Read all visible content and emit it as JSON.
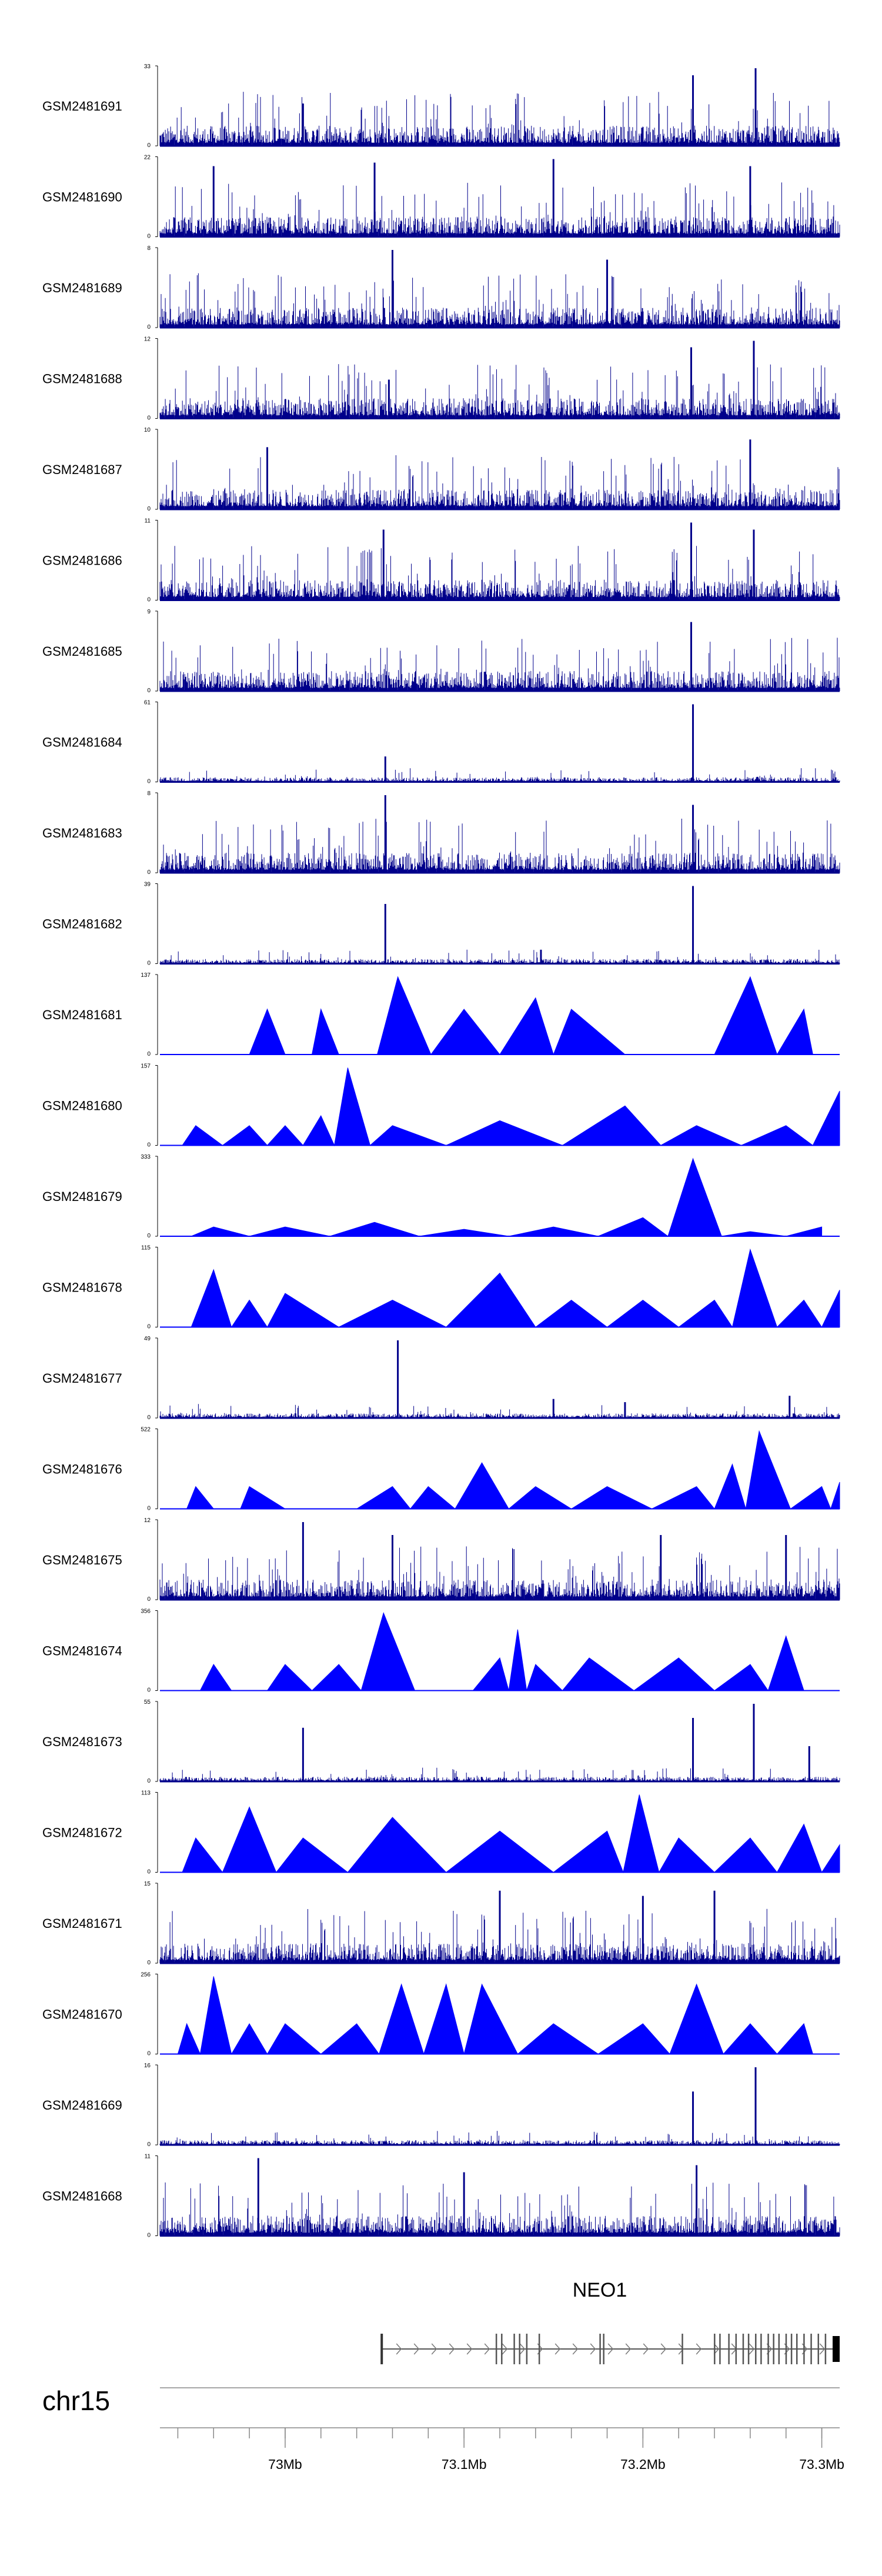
{
  "chart_data": {
    "type": "area",
    "title": "",
    "chromosome": "chr15",
    "gene": {
      "name": "NEO1",
      "start_mb": 73.054,
      "end_mb": 73.31,
      "strand": "+"
    },
    "x_range_mb": [
      72.93,
      73.31
    ],
    "x_ticks": [
      {
        "value": 73.0,
        "label": "73Mb"
      },
      {
        "value": 73.1,
        "label": "73.1Mb"
      },
      {
        "value": 73.2,
        "label": "73.2Mb"
      },
      {
        "value": 73.3,
        "label": "73.3Mb"
      }
    ],
    "series_color": "#0000ff",
    "tracks": [
      {
        "name": "GSM2481691",
        "ymax": "33",
        "ymin": "0",
        "style": "dense",
        "peaks": [
          [
            73.01,
            18
          ],
          [
            73.228,
            30
          ],
          [
            73.263,
            33
          ]
        ]
      },
      {
        "name": "GSM2481690",
        "ymax": "22",
        "ymin": "0",
        "style": "dense",
        "peaks": [
          [
            72.96,
            20
          ],
          [
            73.05,
            21
          ],
          [
            73.15,
            22
          ],
          [
            73.26,
            20
          ]
        ]
      },
      {
        "name": "GSM2481689",
        "ymax": "8",
        "ymin": "0",
        "style": "dense",
        "peaks": [
          [
            73.06,
            8
          ],
          [
            73.18,
            7
          ]
        ]
      },
      {
        "name": "GSM2481688",
        "ymax": "12",
        "ymin": "0",
        "style": "dense",
        "peaks": [
          [
            73.227,
            11
          ],
          [
            73.262,
            12
          ],
          [
            73.058,
            6
          ]
        ]
      },
      {
        "name": "GSM2481687",
        "ymax": "10",
        "ymin": "0",
        "style": "dense",
        "peaks": [
          [
            72.99,
            8
          ],
          [
            73.26,
            9
          ]
        ]
      },
      {
        "name": "GSM2481686",
        "ymax": "11",
        "ymin": "0",
        "style": "dense",
        "peaks": [
          [
            73.055,
            10
          ],
          [
            73.227,
            11
          ],
          [
            73.262,
            10
          ]
        ]
      },
      {
        "name": "GSM2481685",
        "ymax": "9",
        "ymin": "0",
        "style": "dense",
        "peaks": [
          [
            73.227,
            8
          ]
        ]
      },
      {
        "name": "GSM2481684",
        "ymax": "61",
        "ymin": "0",
        "style": "sparse",
        "peaks": [
          [
            73.056,
            20
          ],
          [
            73.228,
            61
          ],
          [
            73.264,
            4
          ]
        ]
      },
      {
        "name": "GSM2481683",
        "ymax": "8",
        "ymin": "0",
        "style": "dense",
        "peaks": [
          [
            73.056,
            8
          ],
          [
            73.228,
            7
          ]
        ]
      },
      {
        "name": "GSM2481682",
        "ymax": "39",
        "ymin": "0",
        "style": "sparse",
        "peaks": [
          [
            73.056,
            30
          ],
          [
            73.228,
            39
          ],
          [
            73.143,
            7
          ]
        ]
      },
      {
        "name": "GSM2481681",
        "ymax": "137",
        "ymin": "0",
        "style": "triangles",
        "peaks": [
          [
            72.97,
            0
          ],
          [
            72.99,
            80
          ],
          [
            73.01,
            0
          ],
          [
            73.02,
            80
          ],
          [
            73.04,
            0
          ],
          [
            73.063,
            137
          ],
          [
            73.1,
            80
          ],
          [
            73.14,
            100
          ],
          [
            73.16,
            80
          ],
          [
            73.22,
            0
          ],
          [
            73.26,
            137
          ],
          [
            73.29,
            80
          ],
          [
            73.3,
            0
          ]
        ]
      },
      {
        "name": "GSM2481680",
        "ymax": "157",
        "ymin": "0",
        "style": "triangles",
        "peaks": [
          [
            72.935,
            0
          ],
          [
            72.95,
            40
          ],
          [
            72.98,
            40
          ],
          [
            73.0,
            40
          ],
          [
            73.02,
            60
          ],
          [
            73.035,
            157
          ],
          [
            73.06,
            40
          ],
          [
            73.12,
            50
          ],
          [
            73.19,
            80
          ],
          [
            73.23,
            40
          ],
          [
            73.28,
            40
          ],
          [
            73.31,
            110
          ]
        ]
      },
      {
        "name": "GSM2481679",
        "ymax": "333",
        "ymin": "0",
        "style": "triangles",
        "peaks": [
          [
            72.935,
            0
          ],
          [
            72.96,
            40
          ],
          [
            73.0,
            40
          ],
          [
            73.05,
            60
          ],
          [
            73.1,
            30
          ],
          [
            73.15,
            40
          ],
          [
            73.2,
            80
          ],
          [
            73.228,
            333
          ],
          [
            73.26,
            20
          ],
          [
            73.3,
            40
          ]
        ]
      },
      {
        "name": "GSM2481678",
        "ymax": "115",
        "ymin": "0",
        "style": "triangles",
        "peaks": [
          [
            72.935,
            0
          ],
          [
            72.96,
            85
          ],
          [
            72.98,
            40
          ],
          [
            73.0,
            50
          ],
          [
            73.06,
            40
          ],
          [
            73.12,
            80
          ],
          [
            73.16,
            40
          ],
          [
            73.2,
            40
          ],
          [
            73.24,
            40
          ],
          [
            73.26,
            115
          ],
          [
            73.29,
            40
          ],
          [
            73.31,
            55
          ]
        ]
      },
      {
        "name": "GSM2481677",
        "ymax": "49",
        "ymin": "0",
        "style": "sparse",
        "peaks": [
          [
            73.063,
            49
          ],
          [
            73.15,
            12
          ],
          [
            73.19,
            10
          ],
          [
            73.282,
            14
          ]
        ]
      },
      {
        "name": "GSM2481676",
        "ymax": "522",
        "ymin": "0",
        "style": "triangles",
        "peaks": [
          [
            72.94,
            0
          ],
          [
            72.95,
            150
          ],
          [
            72.97,
            0
          ],
          [
            72.98,
            150
          ],
          [
            73.02,
            0
          ],
          [
            73.06,
            150
          ],
          [
            73.08,
            150
          ],
          [
            73.11,
            310
          ],
          [
            73.14,
            150
          ],
          [
            73.18,
            150
          ],
          [
            73.23,
            150
          ],
          [
            73.25,
            300
          ],
          [
            73.265,
            522
          ],
          [
            73.3,
            150
          ],
          [
            73.31,
            180
          ]
        ]
      },
      {
        "name": "GSM2481675",
        "ymax": "12",
        "ymin": "0",
        "style": "dense",
        "peaks": [
          [
            73.01,
            12
          ],
          [
            73.06,
            10
          ],
          [
            73.21,
            10
          ],
          [
            73.28,
            10
          ]
        ]
      },
      {
        "name": "GSM2481674",
        "ymax": "356",
        "ymin": "0",
        "style": "triangles",
        "peaks": [
          [
            72.945,
            0
          ],
          [
            72.96,
            120
          ],
          [
            72.98,
            0
          ],
          [
            73.0,
            120
          ],
          [
            73.03,
            120
          ],
          [
            73.055,
            356
          ],
          [
            73.09,
            0
          ],
          [
            73.12,
            150
          ],
          [
            73.13,
            280
          ],
          [
            73.14,
            120
          ],
          [
            73.17,
            150
          ],
          [
            73.22,
            150
          ],
          [
            73.26,
            120
          ],
          [
            73.28,
            250
          ],
          [
            73.3,
            0
          ]
        ]
      },
      {
        "name": "GSM2481673",
        "ymax": "55",
        "ymin": "0",
        "style": "sparse",
        "peaks": [
          [
            73.01,
            38
          ],
          [
            73.228,
            45
          ],
          [
            73.262,
            55
          ],
          [
            73.293,
            25
          ]
        ]
      },
      {
        "name": "GSM2481672",
        "ymax": "113",
        "ymin": "0",
        "style": "triangles",
        "peaks": [
          [
            72.935,
            0
          ],
          [
            72.95,
            50
          ],
          [
            72.98,
            95
          ],
          [
            73.01,
            50
          ],
          [
            73.06,
            80
          ],
          [
            73.12,
            60
          ],
          [
            73.18,
            60
          ],
          [
            73.198,
            113
          ],
          [
            73.22,
            50
          ],
          [
            73.26,
            50
          ],
          [
            73.29,
            70
          ],
          [
            73.31,
            40
          ]
        ]
      },
      {
        "name": "GSM2481671",
        "ymax": "15",
        "ymin": "0",
        "style": "dense",
        "peaks": [
          [
            73.12,
            14
          ],
          [
            73.2,
            13
          ],
          [
            73.24,
            14
          ]
        ]
      },
      {
        "name": "GSM2481670",
        "ymax": "256",
        "ymin": "0",
        "style": "triangles",
        "peaks": [
          [
            72.935,
            0
          ],
          [
            72.945,
            100
          ],
          [
            72.96,
            256
          ],
          [
            72.98,
            100
          ],
          [
            73.0,
            100
          ],
          [
            73.04,
            100
          ],
          [
            73.065,
            230
          ],
          [
            73.09,
            230
          ],
          [
            73.11,
            230
          ],
          [
            73.15,
            100
          ],
          [
            73.2,
            100
          ],
          [
            73.23,
            230
          ],
          [
            73.26,
            100
          ],
          [
            73.29,
            100
          ],
          [
            73.3,
            0
          ]
        ]
      },
      {
        "name": "GSM2481669",
        "ymax": "16",
        "ymin": "0",
        "style": "sparse",
        "peaks": [
          [
            73.228,
            11
          ],
          [
            73.263,
            16
          ]
        ]
      },
      {
        "name": "GSM2481668",
        "ymax": "11",
        "ymin": "0",
        "style": "dense",
        "peaks": [
          [
            72.985,
            11
          ],
          [
            73.1,
            9
          ],
          [
            73.23,
            10
          ]
        ]
      }
    ]
  }
}
